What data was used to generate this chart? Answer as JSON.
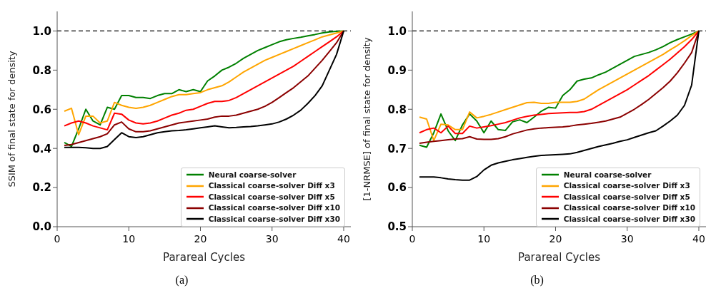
{
  "chart_data": [
    {
      "type": "line",
      "xlabel": "Parareal Cycles",
      "ylabel": "SSIM of final state for density",
      "annotations": [
        "(a)"
      ],
      "x": [
        1,
        2,
        3,
        4,
        5,
        6,
        7,
        8,
        9,
        10,
        11,
        12,
        13,
        14,
        15,
        16,
        17,
        18,
        19,
        20,
        21,
        22,
        23,
        24,
        25,
        26,
        27,
        28,
        29,
        30,
        31,
        32,
        33,
        34,
        35,
        36,
        37,
        38,
        39,
        40
      ],
      "series": [
        {
          "name": "Neural coarse-solver",
          "color": "#008000",
          "values": [
            0.43,
            0.41,
            0.5,
            0.6,
            0.54,
            0.52,
            0.61,
            0.6,
            0.67,
            0.67,
            0.66,
            0.66,
            0.655,
            0.67,
            0.68,
            0.68,
            0.7,
            0.69,
            0.7,
            0.69,
            0.745,
            0.77,
            0.8,
            0.815,
            0.835,
            0.86,
            0.88,
            0.9,
            0.915,
            0.93,
            0.945,
            0.955,
            0.962,
            0.968,
            0.975,
            0.982,
            0.99,
            0.995,
            0.998,
            1.0
          ]
        },
        {
          "name": "Classical coarse-solver Diff x3",
          "color": "#ffa500",
          "values": [
            0.59,
            0.605,
            0.47,
            0.565,
            0.565,
            0.53,
            0.54,
            0.635,
            0.62,
            0.61,
            0.605,
            0.61,
            0.62,
            0.635,
            0.65,
            0.665,
            0.675,
            0.675,
            0.68,
            0.685,
            0.7,
            0.71,
            0.72,
            0.74,
            0.765,
            0.79,
            0.81,
            0.83,
            0.85,
            0.865,
            0.88,
            0.895,
            0.91,
            0.925,
            0.94,
            0.955,
            0.97,
            0.98,
            0.99,
            1.0
          ]
        },
        {
          "name": "Classical coarse-solver Diff x5",
          "color": "#ff0000",
          "values": [
            0.515,
            0.53,
            0.54,
            0.53,
            0.515,
            0.505,
            0.495,
            0.58,
            0.575,
            0.545,
            0.53,
            0.525,
            0.53,
            0.54,
            0.555,
            0.57,
            0.58,
            0.595,
            0.6,
            0.615,
            0.63,
            0.64,
            0.64,
            0.645,
            0.66,
            0.68,
            0.7,
            0.72,
            0.74,
            0.76,
            0.78,
            0.8,
            0.82,
            0.845,
            0.87,
            0.895,
            0.92,
            0.945,
            0.97,
            1.0
          ]
        },
        {
          "name": "Classical coarse-solver Diff x10",
          "color": "#8b0000",
          "values": [
            0.415,
            0.42,
            0.43,
            0.44,
            0.45,
            0.46,
            0.475,
            0.52,
            0.535,
            0.5,
            0.485,
            0.485,
            0.49,
            0.5,
            0.51,
            0.52,
            0.53,
            0.535,
            0.54,
            0.545,
            0.55,
            0.56,
            0.565,
            0.565,
            0.57,
            0.58,
            0.59,
            0.6,
            0.615,
            0.635,
            0.66,
            0.685,
            0.71,
            0.74,
            0.77,
            0.81,
            0.85,
            0.895,
            0.94,
            1.0
          ]
        },
        {
          "name": "Classical coarse-solver Diff x30",
          "color": "#000000",
          "values": [
            0.405,
            0.405,
            0.405,
            0.403,
            0.4,
            0.4,
            0.41,
            0.445,
            0.48,
            0.46,
            0.455,
            0.46,
            0.47,
            0.48,
            0.485,
            0.49,
            0.492,
            0.495,
            0.5,
            0.505,
            0.51,
            0.515,
            0.51,
            0.505,
            0.507,
            0.51,
            0.512,
            0.515,
            0.52,
            0.525,
            0.535,
            0.55,
            0.57,
            0.595,
            0.63,
            0.67,
            0.72,
            0.8,
            0.88,
            1.0
          ]
        }
      ],
      "xlim": [
        0,
        41
      ],
      "xticks": [
        0,
        10,
        20,
        30,
        40
      ],
      "ylim": [
        0,
        1.1
      ],
      "yticks": [
        {
          "value": 0,
          "label": "0.0"
        },
        {
          "value": 0.2,
          "label": "0.2"
        },
        {
          "value": 0.4,
          "label": "0.4"
        },
        {
          "value": 0.6,
          "label": "0.6"
        },
        {
          "value": 0.8,
          "label": "0.8"
        },
        {
          "value": 1,
          "label": "1.0"
        }
      ],
      "ref_lines": [
        {
          "axis": "y",
          "value": 1,
          "color": "#000000",
          "line_style": "dashed"
        }
      ],
      "legend": "bottom right",
      "grid": false,
      "marker": "none",
      "line_style": "solid"
    },
    {
      "type": "line",
      "xlabel": "Parareal Cycles",
      "ylabel": "[1-NRMSE] of final state for density",
      "annotations": [
        "(b)"
      ],
      "x": [
        1,
        2,
        3,
        4,
        5,
        6,
        7,
        8,
        9,
        10,
        11,
        12,
        13,
        14,
        15,
        16,
        17,
        18,
        19,
        20,
        21,
        22,
        23,
        24,
        25,
        26,
        27,
        28,
        29,
        30,
        31,
        32,
        33,
        34,
        35,
        36,
        37,
        38,
        39,
        40
      ],
      "series": [
        {
          "name": "Neural coarse-solver",
          "color": "#008000",
          "values": [
            0.708,
            0.703,
            0.74,
            0.788,
            0.745,
            0.72,
            0.76,
            0.788,
            0.77,
            0.74,
            0.77,
            0.748,
            0.746,
            0.768,
            0.773,
            0.766,
            0.78,
            0.795,
            0.805,
            0.803,
            0.835,
            0.85,
            0.872,
            0.877,
            0.88,
            0.888,
            0.895,
            0.905,
            0.915,
            0.925,
            0.935,
            0.94,
            0.945,
            0.952,
            0.96,
            0.97,
            0.978,
            0.985,
            0.992,
            1.0
          ]
        },
        {
          "name": "Classical coarse-solver Diff x3",
          "color": "#ffa500",
          "values": [
            0.78,
            0.775,
            0.72,
            0.762,
            0.76,
            0.748,
            0.748,
            0.793,
            0.778,
            0.782,
            0.787,
            0.793,
            0.799,
            0.805,
            0.811,
            0.817,
            0.818,
            0.815,
            0.815,
            0.818,
            0.818,
            0.818,
            0.82,
            0.826,
            0.838,
            0.85,
            0.86,
            0.87,
            0.88,
            0.89,
            0.9,
            0.91,
            0.92,
            0.93,
            0.94,
            0.952,
            0.963,
            0.975,
            0.988,
            1.0
          ]
        },
        {
          "name": "Classical coarse-solver Diff x5",
          "color": "#ff0000",
          "values": [
            0.74,
            0.748,
            0.752,
            0.74,
            0.757,
            0.738,
            0.738,
            0.757,
            0.752,
            0.755,
            0.758,
            0.762,
            0.766,
            0.772,
            0.778,
            0.782,
            0.785,
            0.787,
            0.789,
            0.79,
            0.791,
            0.792,
            0.792,
            0.794,
            0.8,
            0.81,
            0.82,
            0.83,
            0.84,
            0.85,
            0.862,
            0.874,
            0.886,
            0.9,
            0.914,
            0.928,
            0.944,
            0.96,
            0.978,
            1.0
          ]
        },
        {
          "name": "Classical coarse-solver Diff x10",
          "color": "#8b0000",
          "values": [
            0.713,
            0.716,
            0.718,
            0.72,
            0.722,
            0.724,
            0.725,
            0.73,
            0.724,
            0.723,
            0.723,
            0.725,
            0.73,
            0.737,
            0.742,
            0.747,
            0.75,
            0.752,
            0.753,
            0.754,
            0.755,
            0.757,
            0.76,
            0.762,
            0.764,
            0.767,
            0.77,
            0.775,
            0.78,
            0.79,
            0.8,
            0.812,
            0.825,
            0.84,
            0.855,
            0.872,
            0.893,
            0.918,
            0.945,
            1.0
          ]
        },
        {
          "name": "Classical coarse-solver Diff x30",
          "color": "#000000",
          "values": [
            0.627,
            0.627,
            0.627,
            0.625,
            0.622,
            0.62,
            0.619,
            0.619,
            0.628,
            0.645,
            0.657,
            0.663,
            0.667,
            0.671,
            0.674,
            0.677,
            0.68,
            0.682,
            0.683,
            0.684,
            0.685,
            0.686,
            0.69,
            0.695,
            0.7,
            0.705,
            0.709,
            0.713,
            0.718,
            0.722,
            0.728,
            0.734,
            0.74,
            0.745,
            0.757,
            0.77,
            0.785,
            0.81,
            0.862,
            1.0
          ]
        }
      ],
      "xlim": [
        0,
        41
      ],
      "xticks": [
        0,
        10,
        20,
        30,
        40
      ],
      "ylim": [
        0.5,
        1.05
      ],
      "yticks": [
        0.5,
        0.6,
        0.7,
        0.8,
        0.9,
        {
          "value": 1,
          "label": "1.0"
        }
      ],
      "ref_lines": [
        {
          "axis": "y",
          "value": 1,
          "color": "#000000",
          "line_style": "dashed"
        }
      ],
      "legend": "bottom right",
      "grid": false,
      "marker": "none",
      "line_style": "solid"
    }
  ]
}
